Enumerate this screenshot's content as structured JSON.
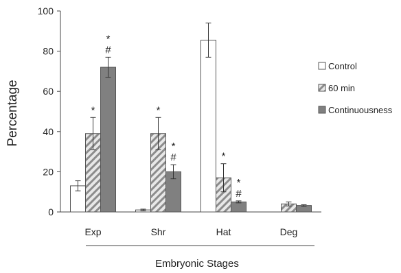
{
  "chart_data": {
    "type": "bar",
    "title": "",
    "xlabel": "Embryonic Stages",
    "ylabel": "Percentage",
    "ylim": [
      0,
      100
    ],
    "yticks": [
      0,
      20,
      40,
      60,
      80,
      100
    ],
    "ytick_labels": [
      "0",
      "20",
      "40",
      "60",
      "80",
      "100"
    ],
    "categories": [
      "Exp",
      "Shr",
      "Hat",
      "Deg"
    ],
    "legend_position": "right",
    "grid": false,
    "series": [
      {
        "name": "Control",
        "fill": "#ffffff",
        "pattern": "none",
        "values": [
          13,
          1,
          85.5,
          0
        ],
        "errors": [
          2.5,
          0.4,
          8.5,
          0
        ],
        "annotations": [
          "",
          "",
          "",
          ""
        ]
      },
      {
        "name": "60 min",
        "fill": "#d4d4d4",
        "pattern": "diagonal-stripes",
        "values": [
          39,
          39,
          17,
          4
        ],
        "errors": [
          8,
          8,
          7,
          1
        ],
        "annotations": [
          "*",
          "*",
          "*",
          ""
        ]
      },
      {
        "name": "Continuousness",
        "fill": "#808080",
        "pattern": "none",
        "values": [
          72,
          20,
          5,
          3.2
        ],
        "errors": [
          5,
          3.5,
          0.5,
          0.4
        ],
        "annotations": [
          "*\n#",
          "*\n#",
          "*\n#",
          ""
        ]
      }
    ]
  }
}
